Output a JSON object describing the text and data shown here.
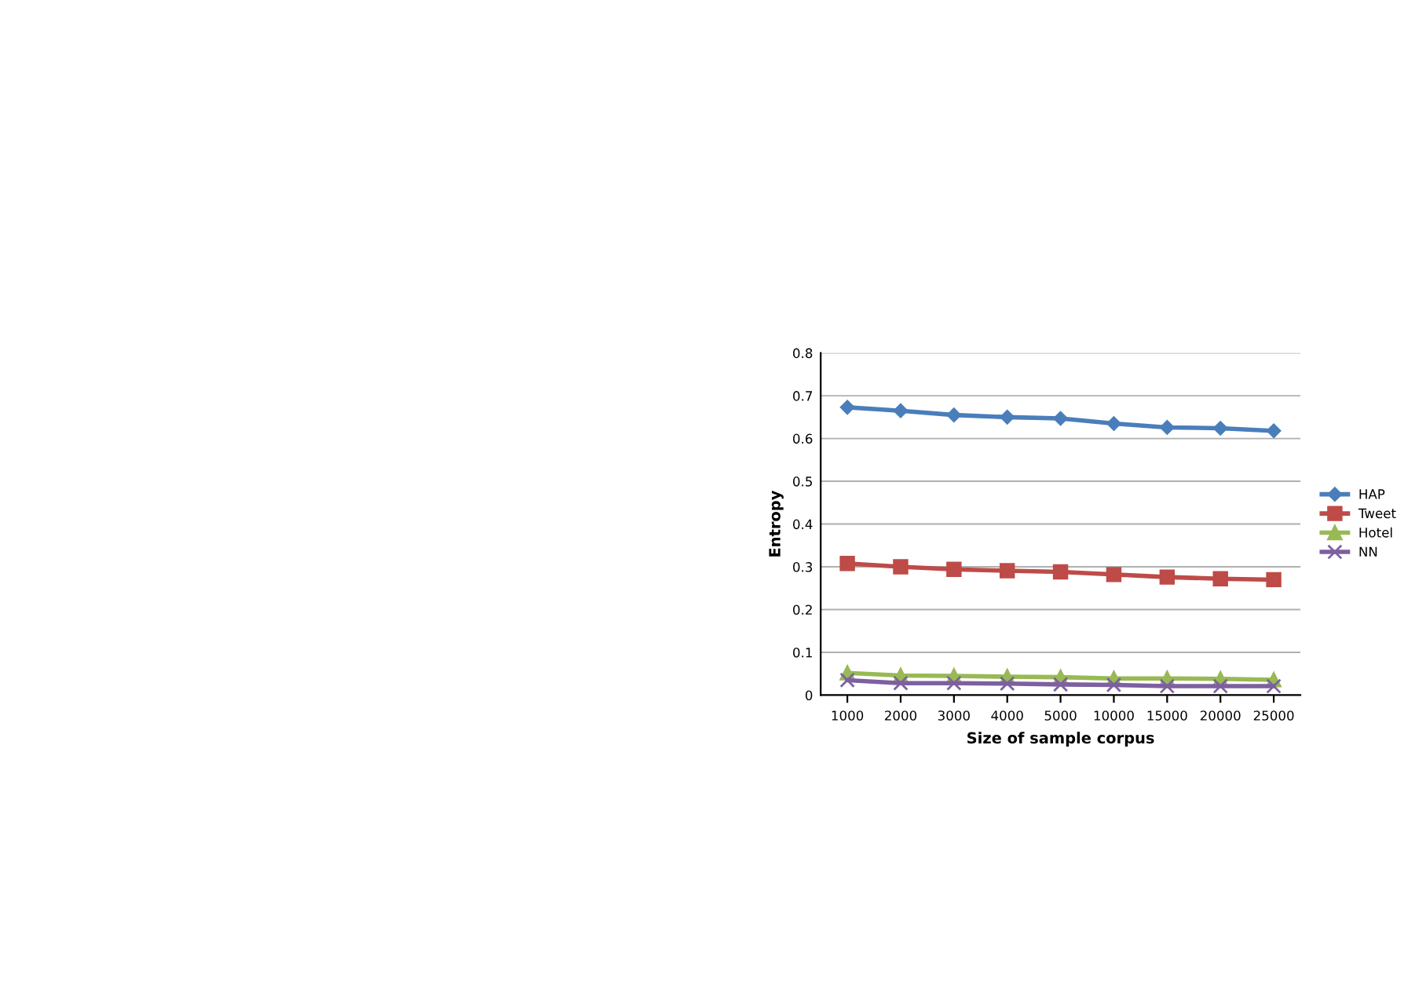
{
  "chart_data": {
    "type": "line",
    "xlabel": "Size of sample corpus",
    "ylabel": "Entropy",
    "categories": [
      "1000",
      "2000",
      "3000",
      "4000",
      "5000",
      "10000",
      "15000",
      "20000",
      "25000"
    ],
    "series": [
      {
        "name": "HAP",
        "color": "#4a7ebb",
        "marker": "diamond",
        "values": [
          0.673,
          0.665,
          0.655,
          0.65,
          0.647,
          0.635,
          0.626,
          0.624,
          0.618
        ]
      },
      {
        "name": "Tweet",
        "color": "#be4b48",
        "marker": "square",
        "values": [
          0.308,
          0.3,
          0.294,
          0.291,
          0.288,
          0.282,
          0.276,
          0.272,
          0.27
        ]
      },
      {
        "name": "Hotel",
        "color": "#98b954",
        "marker": "triangle",
        "values": [
          0.052,
          0.046,
          0.045,
          0.043,
          0.042,
          0.039,
          0.039,
          0.038,
          0.036
        ]
      },
      {
        "name": "NN",
        "color": "#7d60a0",
        "marker": "cross",
        "values": [
          0.035,
          0.028,
          0.028,
          0.027,
          0.025,
          0.024,
          0.021,
          0.021,
          0.021
        ]
      }
    ],
    "ylim": [
      0,
      0.8
    ],
    "yticks": [
      0,
      0.1,
      0.2,
      0.3,
      0.4,
      0.5,
      0.6,
      0.7,
      0.8
    ],
    "grid": "y",
    "legend": "right"
  }
}
